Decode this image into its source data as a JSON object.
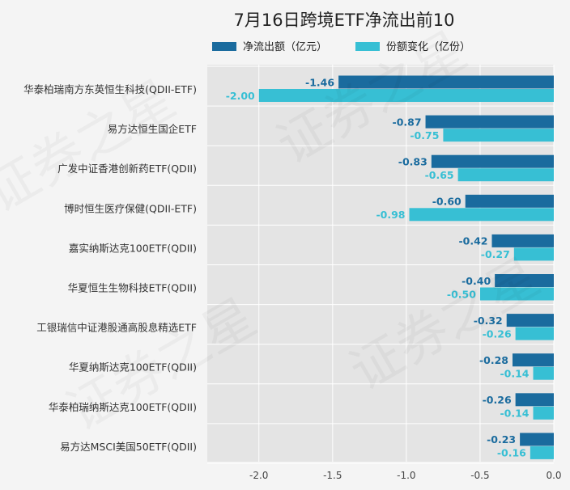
{
  "chart_data": {
    "type": "bar",
    "orientation": "horizontal",
    "title": "7月16日跨境ETF净流出前10",
    "categories": [
      "华泰柏瑞南方东英恒生科技(QDII-ETF)",
      "易方达恒生国企ETF",
      "广发中证香港创新药ETF(QDII)",
      "博时恒生医疗保健(QDII-ETF)",
      "嘉实纳斯达克100ETF(QDII)",
      "华夏恒生生物科技ETF(QDII)",
      "工银瑞信中证港股通高股息精选ETF",
      "华夏纳斯达克100ETF(QDII)",
      "华泰柏瑞纳斯达克100ETF(QDII)",
      "易方达MSCI美国50ETF(QDII)"
    ],
    "series": [
      {
        "name": "净流出额（亿元）",
        "color": "#1a6b9e",
        "values": [
          -1.46,
          -0.87,
          -0.83,
          -0.6,
          -0.42,
          -0.4,
          -0.32,
          -0.28,
          -0.26,
          -0.23
        ],
        "labels": [
          "-1.46",
          "-0.87",
          "-0.83",
          "-0.60",
          "-0.42",
          "-0.40",
          "-0.32",
          "-0.28",
          "-0.26",
          "-0.23"
        ]
      },
      {
        "name": "份额变化（亿份）",
        "color": "#37bfd4",
        "values": [
          -2.0,
          -0.75,
          -0.65,
          -0.98,
          -0.27,
          -0.5,
          -0.26,
          -0.14,
          -0.14,
          -0.16
        ],
        "labels": [
          "-2.00",
          "-0.75",
          "-0.65",
          "-0.98",
          "-0.27",
          "-0.50",
          "-0.26",
          "-0.14",
          "-0.14",
          "-0.16"
        ]
      }
    ],
    "xlim": [
      -2.35,
      0.0
    ],
    "xticks": [
      -2.0,
      -1.5,
      -1.0,
      -0.5,
      0.0
    ],
    "xtick_labels": [
      "-2.0",
      "-1.5",
      "-1.0",
      "-0.5",
      "0.0"
    ],
    "grid": true,
    "legend_position": "top-center",
    "plot_background": "#e4e4e4"
  },
  "watermark": "证券之星"
}
